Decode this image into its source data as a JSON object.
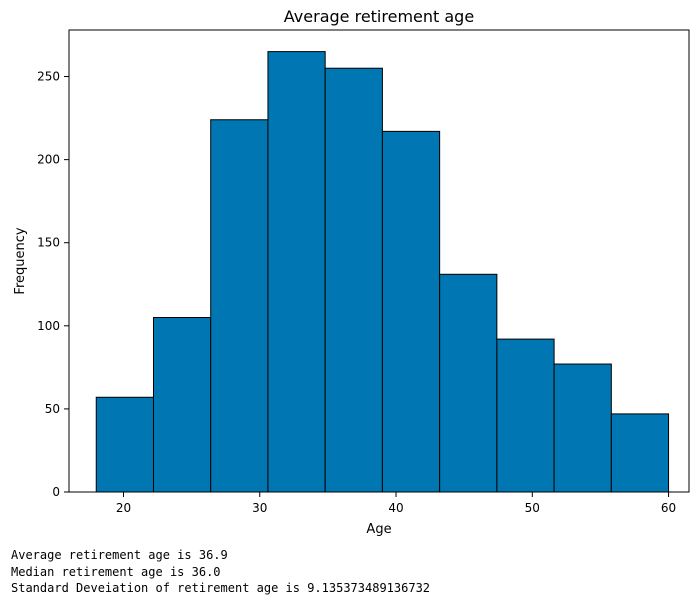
{
  "chart_data": {
    "type": "bar",
    "title": "Average retirement age",
    "xlabel": "Age",
    "ylabel": "Frequency",
    "bin_edges": [
      18,
      22.2,
      26.4,
      30.6,
      34.8,
      39,
      43.2,
      47.4,
      51.6,
      55.8,
      60
    ],
    "values": [
      57,
      105,
      224,
      265,
      255,
      217,
      131,
      92,
      77,
      47
    ],
    "xlim": [
      16,
      61.5
    ],
    "ylim": [
      0,
      278
    ],
    "x_ticks": [
      20,
      30,
      40,
      50,
      60
    ],
    "y_ticks": [
      0,
      50,
      100,
      150,
      200,
      250
    ],
    "bar_color": "#0077b3",
    "edge_color": "#000000",
    "grid": false
  },
  "output": {
    "lines": [
      "Average retirement age is 36.9",
      "Median retirement age is 36.0",
      "Standard Deveiation of retirement age is 9.135373489136732"
    ]
  }
}
